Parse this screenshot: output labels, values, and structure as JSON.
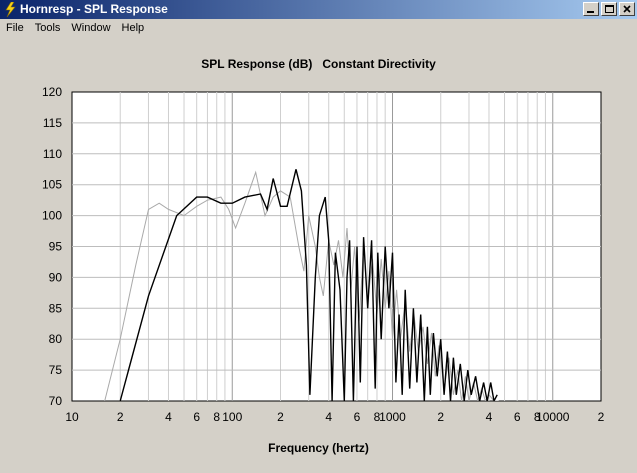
{
  "window": {
    "title": "Hornresp - SPL Response"
  },
  "menu": [
    "File",
    "Tools",
    "Window",
    "Help"
  ],
  "chart_data": {
    "type": "line",
    "title": "SPL Response (dB)   Constant Directivity",
    "xlabel": "Frequency (hertz)",
    "ylabel": "",
    "xscale": "log",
    "xlim": [
      10,
      20000
    ],
    "ylim": [
      70,
      120
    ],
    "yticks": [
      70,
      75,
      80,
      85,
      90,
      95,
      100,
      105,
      110,
      115,
      120
    ],
    "xtick_labels": [
      {
        "x": 10,
        "label": "10"
      },
      {
        "x": 20,
        "label": "2"
      },
      {
        "x": 40,
        "label": "4"
      },
      {
        "x": 60,
        "label": "6"
      },
      {
        "x": 80,
        "label": "8"
      },
      {
        "x": 100,
        "label": "100"
      },
      {
        "x": 200,
        "label": "2"
      },
      {
        "x": 400,
        "label": "4"
      },
      {
        "x": 600,
        "label": "6"
      },
      {
        "x": 800,
        "label": "8"
      },
      {
        "x": 1000,
        "label": "1000"
      },
      {
        "x": 2000,
        "label": "2"
      },
      {
        "x": 4000,
        "label": "4"
      },
      {
        "x": 6000,
        "label": "6"
      },
      {
        "x": 8000,
        "label": "8"
      },
      {
        "x": 10000,
        "label": "10000"
      },
      {
        "x": 20000,
        "label": "2"
      }
    ],
    "grid": true,
    "series": [
      {
        "color": "#000000",
        "x": [
          20,
          30,
          45,
          60,
          70,
          85,
          100,
          120,
          150,
          165,
          180,
          200,
          220,
          250,
          270,
          290,
          305,
          330,
          350,
          380,
          400,
          420,
          440,
          470,
          500,
          520,
          540,
          570,
          600,
          630,
          660,
          700,
          740,
          780,
          810,
          850,
          900,
          950,
          1000,
          1050,
          1100,
          1150,
          1200,
          1280,
          1350,
          1420,
          1500,
          1580,
          1650,
          1720,
          1800,
          1900,
          2000,
          2100,
          2200,
          2300,
          2400,
          2500,
          2650,
          2800,
          2950,
          3100,
          3300,
          3500,
          3700,
          3900,
          4100,
          4300,
          4500
        ],
        "y": [
          70,
          87,
          100,
          103,
          103,
          102,
          102,
          103,
          103.5,
          101,
          106,
          101.5,
          101.5,
          107.5,
          104,
          92,
          71,
          90,
          100,
          103,
          96,
          70,
          94,
          88,
          70,
          90,
          96,
          70,
          95,
          73,
          96.5,
          85,
          96,
          72,
          94,
          80,
          95,
          85,
          94,
          73,
          84,
          71,
          88,
          72,
          85,
          73,
          84,
          70,
          82,
          71,
          81,
          74,
          80,
          71,
          78,
          70,
          77,
          71,
          76,
          70,
          75,
          71,
          74,
          70,
          73,
          70,
          73,
          70,
          71
        ]
      },
      {
        "color": "#a9a9a9",
        "x": [
          16,
          20,
          25,
          30,
          35,
          40,
          50,
          60,
          70,
          85,
          95,
          105,
          120,
          140,
          160,
          180,
          200,
          230,
          260,
          280,
          300,
          330,
          350,
          370,
          400,
          430,
          460,
          490,
          520,
          550,
          580,
          620,
          660,
          700,
          750,
          800,
          850,
          900,
          950,
          1000,
          1060,
          1120,
          1200,
          1280,
          1360,
          1450,
          1550,
          1650,
          1750,
          1850,
          1950,
          2100,
          2250,
          2400,
          2550,
          2700,
          2850,
          3000,
          3200,
          3400,
          3600,
          3800,
          4000,
          4300,
          4600
        ],
        "y": [
          70,
          80,
          92,
          101,
          102,
          101,
          100,
          101.5,
          102.5,
          103,
          101,
          98,
          102,
          107,
          100,
          103,
          104,
          103,
          95,
          91,
          100,
          95,
          90,
          87,
          96,
          92,
          96,
          90,
          98,
          88,
          95,
          83,
          95,
          86,
          93,
          84,
          93,
          85,
          91,
          80,
          88,
          80,
          86,
          78,
          84,
          78,
          82,
          76,
          81,
          74,
          79,
          72,
          77,
          71,
          75,
          70,
          74,
          70,
          73,
          70,
          72,
          70,
          71,
          70,
          70
        ]
      }
    ]
  }
}
